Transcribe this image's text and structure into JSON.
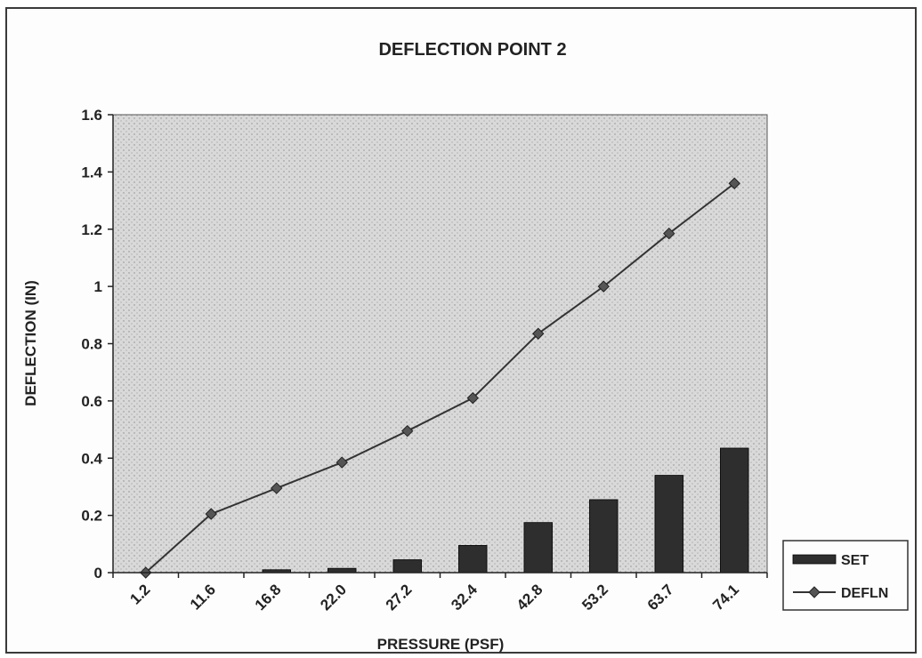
{
  "chart_data": {
    "type": "bar",
    "title": "DEFLECTION POINT 2",
    "xlabel": "PRESSURE (PSF)",
    "ylabel": "DEFLECTION (IN)",
    "categories": [
      "1.2",
      "11.6",
      "16.8",
      "22.0",
      "27.2",
      "32.4",
      "42.8",
      "53.2",
      "63.7",
      "74.1"
    ],
    "ylim": [
      0,
      1.6
    ],
    "yticks": [
      "0",
      "0.2",
      "0.4",
      "0.6",
      "0.8",
      "1",
      "1.2",
      "1.4",
      "1.6"
    ],
    "series": [
      {
        "name": "SET",
        "type": "bar",
        "color": "#2e2e2e",
        "values": [
          0.0,
          0.0,
          0.01,
          0.015,
          0.045,
          0.095,
          0.175,
          0.255,
          0.34,
          0.435
        ]
      },
      {
        "name": "DEFLN",
        "type": "line",
        "color": "#333333",
        "marker": "diamond",
        "values": [
          0.0,
          0.205,
          0.295,
          0.385,
          0.495,
          0.61,
          0.835,
          1.0,
          1.185,
          1.36
        ]
      }
    ],
    "grid": false,
    "legend_position": "bottom-right",
    "plot_background": "#cfcfcf"
  }
}
